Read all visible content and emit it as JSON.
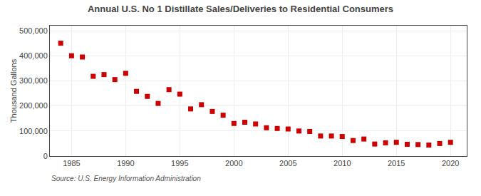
{
  "chart_data": {
    "type": "scatter",
    "title": "Annual U.S. No 1 Distillate Sales/Deliveries to Residential Consumers",
    "ylabel": "Thousand Gallons",
    "annotations": [
      "Source: U.S. Energy Information Administration"
    ],
    "x": [
      1984,
      1985,
      1986,
      1987,
      1988,
      1989,
      1990,
      1991,
      1992,
      1993,
      1994,
      1995,
      1996,
      1997,
      1998,
      1999,
      2000,
      2001,
      2002,
      2003,
      2004,
      2005,
      2006,
      2007,
      2008,
      2009,
      2010,
      2011,
      2012,
      2013,
      2014,
      2015,
      2016,
      2017,
      2018,
      2019,
      2020
    ],
    "values": [
      450000,
      400000,
      395000,
      318000,
      325000,
      305000,
      330000,
      258000,
      238000,
      210000,
      265000,
      247000,
      188000,
      205000,
      178000,
      163000,
      130000,
      135000,
      128000,
      113000,
      110000,
      108000,
      100000,
      98000,
      80000,
      80000,
      78000,
      62000,
      68000,
      48000,
      53000,
      55000,
      47000,
      46000,
      44000,
      50000,
      55000
    ],
    "color": "#cc0000",
    "marker": "square",
    "xlim": [
      1983.0,
      2021.5
    ],
    "xticks": [
      1985,
      1990,
      1995,
      2000,
      2005,
      2010,
      2015,
      2020
    ],
    "ylim": [
      0,
      520000
    ],
    "yticks": [
      0,
      {
        "value": 100000,
        "label": "100,000"
      },
      {
        "value": 200000,
        "label": "200,000"
      },
      {
        "value": 300000,
        "label": "300,000"
      },
      {
        "value": 400000,
        "label": "400,000"
      },
      {
        "value": 500000,
        "label": "500,000"
      }
    ],
    "grid": true
  }
}
